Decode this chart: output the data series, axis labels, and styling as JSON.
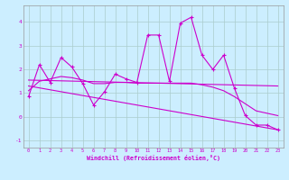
{
  "xlabel": "Windchill (Refroidissement éolien,°C)",
  "bg_color": "#cceeff",
  "line_color": "#cc00cc",
  "grid_color": "#aacccc",
  "xlim": [
    -0.5,
    23.5
  ],
  "ylim": [
    -1.3,
    4.7
  ],
  "xticks": [
    0,
    1,
    2,
    3,
    4,
    5,
    6,
    7,
    8,
    9,
    10,
    11,
    12,
    13,
    14,
    15,
    16,
    17,
    18,
    19,
    20,
    21,
    22,
    23
  ],
  "yticks": [
    -1,
    0,
    1,
    2,
    3,
    4
  ],
  "series1_x": [
    0,
    1,
    2,
    3,
    4,
    5,
    6,
    7,
    8,
    9,
    10,
    11,
    12,
    13,
    14,
    15,
    16,
    17,
    18,
    19,
    20,
    21,
    22,
    23
  ],
  "series1_y": [
    0.85,
    2.2,
    1.45,
    2.5,
    2.1,
    1.4,
    0.5,
    1.05,
    1.8,
    1.6,
    1.45,
    3.45,
    3.45,
    1.5,
    3.95,
    4.2,
    2.6,
    2.0,
    2.6,
    1.2,
    0.05,
    -0.35,
    -0.35,
    -0.55
  ],
  "trend1_x": [
    0,
    23
  ],
  "trend1_y": [
    1.55,
    1.3
  ],
  "trend2_x": [
    0,
    23
  ],
  "trend2_y": [
    1.3,
    -0.55
  ],
  "smooth_x": [
    0,
    1,
    2,
    3,
    4,
    5,
    6,
    7,
    8,
    9,
    10,
    11,
    12,
    13,
    14,
    15,
    16,
    17,
    18,
    19,
    20,
    21,
    22,
    23
  ],
  "smooth_y": [
    1.1,
    1.5,
    1.6,
    1.7,
    1.65,
    1.55,
    1.4,
    1.4,
    1.45,
    1.45,
    1.42,
    1.42,
    1.42,
    1.42,
    1.42,
    1.42,
    1.35,
    1.25,
    1.1,
    0.85,
    0.55,
    0.25,
    0.15,
    0.05
  ]
}
